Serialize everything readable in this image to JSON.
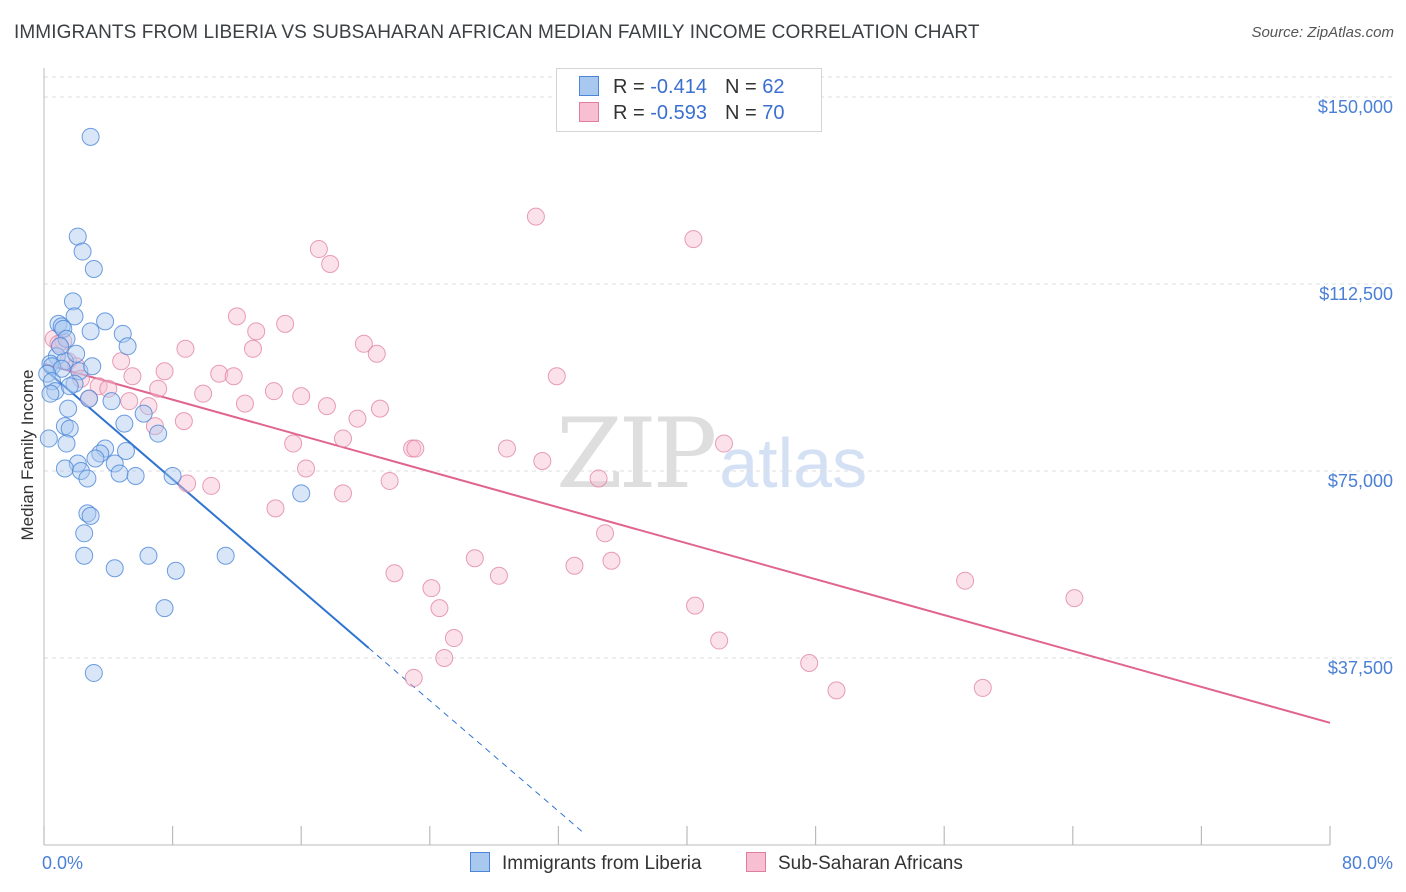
{
  "title": "IMMIGRANTS FROM LIBERIA VS SUBSAHARAN AFRICAN MEDIAN FAMILY INCOME CORRELATION CHART",
  "source": "Source: ZipAtlas.com",
  "watermark": {
    "part1": "ZIP",
    "part2": "atlas"
  },
  "legend": {
    "rows": [
      {
        "r_label": "R = ",
        "r_value": "-0.414",
        "n_label": "N = ",
        "n_value": "62"
      },
      {
        "r_label": "R = ",
        "r_value": "-0.593",
        "n_label": "N = ",
        "n_value": "70"
      }
    ]
  },
  "colors": {
    "liberia_fill": "#a9c8f0",
    "liberia_stroke": "#4a86d8",
    "liberia_line": "#2f74d0",
    "subsaharan_fill": "#f7bfd1",
    "subsaharan_stroke": "#e07ea0",
    "subsaharan_line": "#e0648e",
    "grid": "#dddddd",
    "axis_text": "#4a7fd6"
  },
  "chart_data": {
    "type": "scatter",
    "title": "IMMIGRANTS FROM LIBERIA VS SUBSAHARAN AFRICAN MEDIAN FAMILY INCOME CORRELATION CHART",
    "xlabel": "",
    "ylabel": "Median Family Income",
    "x_tick_labels": [
      "0.0%",
      "80.0%"
    ],
    "y_ticks": [
      {
        "value": 37500,
        "label": "$37,500"
      },
      {
        "value": 75000,
        "label": "$75,000"
      },
      {
        "value": 112500,
        "label": "$112,500"
      },
      {
        "value": 150000,
        "label": "$150,000"
      }
    ],
    "xlim": [
      0,
      80
    ],
    "ylim": [
      0,
      154000
    ],
    "series": [
      {
        "name": "Immigrants from Liberia",
        "R": -0.414,
        "N": 62,
        "trend": {
          "x1": 0,
          "y1": 95500,
          "x2": 20.2,
          "y2": 39500,
          "dash_to_x": 33.5
        },
        "points": [
          [
            2.9,
            142000
          ],
          [
            2.1,
            122000
          ],
          [
            2.4,
            119000
          ],
          [
            3.1,
            115500
          ],
          [
            1.8,
            109000
          ],
          [
            1.9,
            106000
          ],
          [
            0.9,
            104500
          ],
          [
            1.1,
            104000
          ],
          [
            1.2,
            103500
          ],
          [
            2.9,
            103000
          ],
          [
            3.8,
            105000
          ],
          [
            4.9,
            102500
          ],
          [
            1.4,
            101500
          ],
          [
            5.2,
            100000
          ],
          [
            0.8,
            98000
          ],
          [
            1.3,
            97000
          ],
          [
            0.4,
            96500
          ],
          [
            0.5,
            96000
          ],
          [
            1.1,
            95500
          ],
          [
            2.2,
            95000
          ],
          [
            0.2,
            94500
          ],
          [
            0.5,
            93000
          ],
          [
            1.9,
            92500
          ],
          [
            0.7,
            91000
          ],
          [
            0.4,
            90500
          ],
          [
            2.8,
            89500
          ],
          [
            4.2,
            89000
          ],
          [
            1.5,
            87500
          ],
          [
            6.2,
            86500
          ],
          [
            5.0,
            84500
          ],
          [
            1.3,
            84000
          ],
          [
            1.6,
            83500
          ],
          [
            7.1,
            82500
          ],
          [
            0.3,
            81500
          ],
          [
            1.4,
            80500
          ],
          [
            3.8,
            79500
          ],
          [
            5.1,
            79000
          ],
          [
            3.5,
            78500
          ],
          [
            3.2,
            77500
          ],
          [
            2.1,
            76500
          ],
          [
            4.4,
            76500
          ],
          [
            1.3,
            75500
          ],
          [
            2.3,
            75000
          ],
          [
            4.7,
            74500
          ],
          [
            5.7,
            74000
          ],
          [
            8.0,
            74000
          ],
          [
            2.7,
            73500
          ],
          [
            16.0,
            70500
          ],
          [
            2.7,
            66500
          ],
          [
            2.9,
            66000
          ],
          [
            2.5,
            62500
          ],
          [
            2.5,
            58000
          ],
          [
            6.5,
            58000
          ],
          [
            11.3,
            58000
          ],
          [
            4.4,
            55500
          ],
          [
            8.2,
            55000
          ],
          [
            7.5,
            47500
          ],
          [
            3.1,
            34500
          ],
          [
            1.0,
            100000
          ],
          [
            2.0,
            98500
          ],
          [
            3.0,
            96000
          ],
          [
            1.6,
            92000
          ]
        ]
      },
      {
        "name": "Sub-Saharan Africans",
        "R": -0.593,
        "N": 70,
        "trend": {
          "x1": 0,
          "y1": 96500,
          "x2": 80,
          "y2": 24500
        },
        "points": [
          [
            30.6,
            126000
          ],
          [
            40.4,
            121500
          ],
          [
            17.1,
            119500
          ],
          [
            17.8,
            116500
          ],
          [
            12.0,
            106000
          ],
          [
            15.0,
            104500
          ],
          [
            13.2,
            103000
          ],
          [
            0.6,
            101500
          ],
          [
            1.2,
            101000
          ],
          [
            0.9,
            100500
          ],
          [
            19.9,
            100500
          ],
          [
            8.8,
            99500
          ],
          [
            13.0,
            99500
          ],
          [
            20.7,
            98500
          ],
          [
            1.5,
            97000
          ],
          [
            2.0,
            96000
          ],
          [
            7.5,
            95000
          ],
          [
            10.9,
            94500
          ],
          [
            11.8,
            94000
          ],
          [
            5.5,
            94000
          ],
          [
            31.9,
            94000
          ],
          [
            2.3,
            93500
          ],
          [
            3.4,
            92000
          ],
          [
            4.0,
            91500
          ],
          [
            7.1,
            91500
          ],
          [
            9.9,
            90500
          ],
          [
            14.3,
            91000
          ],
          [
            16.0,
            90000
          ],
          [
            2.8,
            89500
          ],
          [
            5.3,
            89000
          ],
          [
            6.5,
            88000
          ],
          [
            12.5,
            88500
          ],
          [
            17.6,
            88000
          ],
          [
            20.9,
            87500
          ],
          [
            19.5,
            85500
          ],
          [
            8.7,
            85000
          ],
          [
            6.9,
            84000
          ],
          [
            18.6,
            81500
          ],
          [
            15.5,
            80500
          ],
          [
            22.9,
            79500
          ],
          [
            23.1,
            79500
          ],
          [
            28.8,
            79500
          ],
          [
            42.3,
            80500
          ],
          [
            31.0,
            77000
          ],
          [
            16.3,
            75500
          ],
          [
            34.5,
            73500
          ],
          [
            21.5,
            73000
          ],
          [
            8.9,
            72500
          ],
          [
            10.4,
            72000
          ],
          [
            18.6,
            70500
          ],
          [
            14.4,
            67500
          ],
          [
            34.9,
            62500
          ],
          [
            26.8,
            57500
          ],
          [
            35.3,
            57000
          ],
          [
            33.0,
            56000
          ],
          [
            21.8,
            54500
          ],
          [
            28.3,
            54000
          ],
          [
            57.3,
            53000
          ],
          [
            24.1,
            51500
          ],
          [
            64.1,
            49500
          ],
          [
            24.6,
            47500
          ],
          [
            40.5,
            48000
          ],
          [
            25.5,
            41500
          ],
          [
            42.0,
            41000
          ],
          [
            24.9,
            37500
          ],
          [
            47.6,
            36500
          ],
          [
            23.0,
            33500
          ],
          [
            49.3,
            31000
          ],
          [
            58.4,
            31500
          ],
          [
            4.8,
            97000
          ]
        ]
      }
    ]
  },
  "bottom_legend": {
    "liberia_label": "Immigrants from Liberia",
    "subsaharan_label": "Sub-Saharan Africans"
  }
}
